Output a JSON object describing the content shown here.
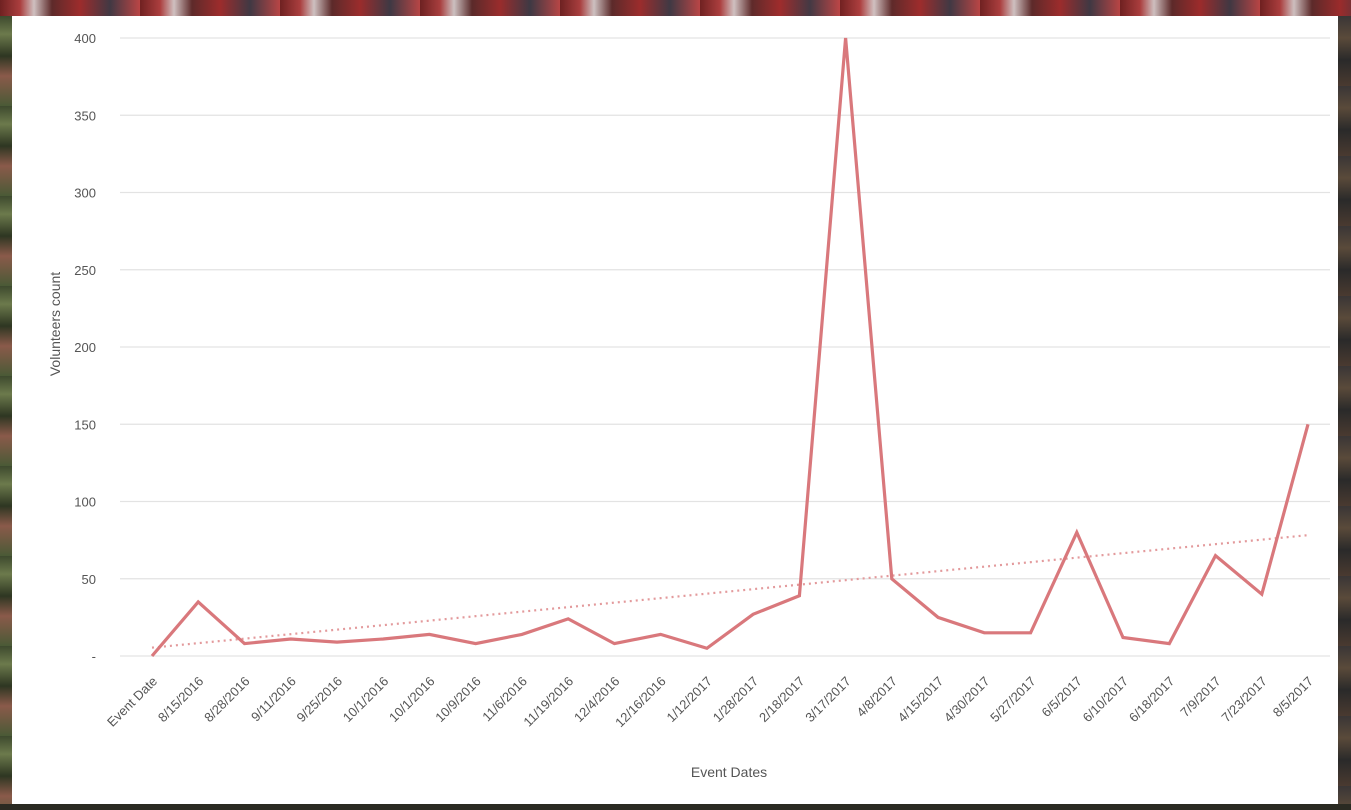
{
  "chart_data": {
    "type": "line",
    "xlabel": "Event Dates",
    "ylabel": "Volunteers count",
    "categories": [
      "Event Date",
      "8/15/2016",
      "8/28/2016",
      "9/11/2016",
      "9/25/2016",
      "10/1/2016",
      "10/1/2016",
      "10/9/2016",
      "11/6/2016",
      "11/19/2016",
      "12/4/2016",
      "12/16/2016",
      "1/12/2017",
      "1/28/2017",
      "2/18/2017",
      "3/17/2017",
      "4/8/2017",
      "4/15/2017",
      "4/30/2017",
      "5/27/2017",
      "6/5/2017",
      "6/10/2017",
      "6/18/2017",
      "7/9/2017",
      "7/23/2017",
      "8/5/2017"
    ],
    "series": [
      {
        "values": [
          0,
          35,
          8,
          11,
          9,
          11,
          14,
          8,
          14,
          24,
          8,
          14,
          5,
          27,
          39,
          400,
          50,
          25,
          15,
          15,
          80,
          12,
          8,
          65,
          40,
          150
        ],
        "color": "#d9787c"
      }
    ],
    "trendline": {
      "type": "linear",
      "style": "dotted",
      "color": "#e39a9c"
    },
    "ylim": [
      0,
      400
    ],
    "yticks": [
      0,
      50,
      100,
      150,
      200,
      250,
      300,
      350,
      400
    ],
    "ytick_labels": [
      "-",
      "50",
      "100",
      "150",
      "200",
      "250",
      "300",
      "350",
      "400"
    ],
    "grid": true,
    "legend": "none"
  }
}
